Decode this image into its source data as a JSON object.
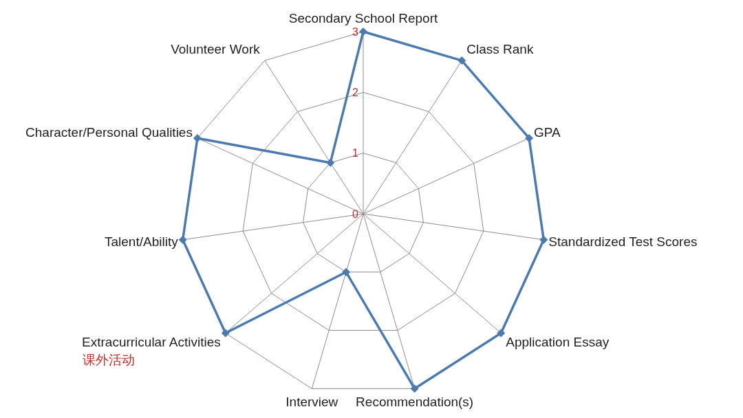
{
  "chart_data": {
    "type": "radar",
    "categories": [
      "Secondary School Report",
      "Class Rank",
      "GPA",
      "Standardized Test Scores",
      "Application Essay",
      "Recommendation(s)",
      "Interview",
      "Extracurricular Activities",
      "Talent/Ability",
      "Character/Personal Qualities",
      "Volunteer Work"
    ],
    "series": [
      {
        "color": "#4a7aae",
        "values": [
          3,
          3,
          3,
          3,
          3,
          3,
          1,
          3,
          3,
          3,
          1
        ]
      }
    ],
    "ylim": [
      0,
      3
    ],
    "yticks": [
      0,
      1,
      2,
      3
    ],
    "marker": "diamond",
    "grid": true,
    "annotations": [
      {
        "text": "课外活动",
        "x": "Extracurricular Activities"
      }
    ]
  }
}
